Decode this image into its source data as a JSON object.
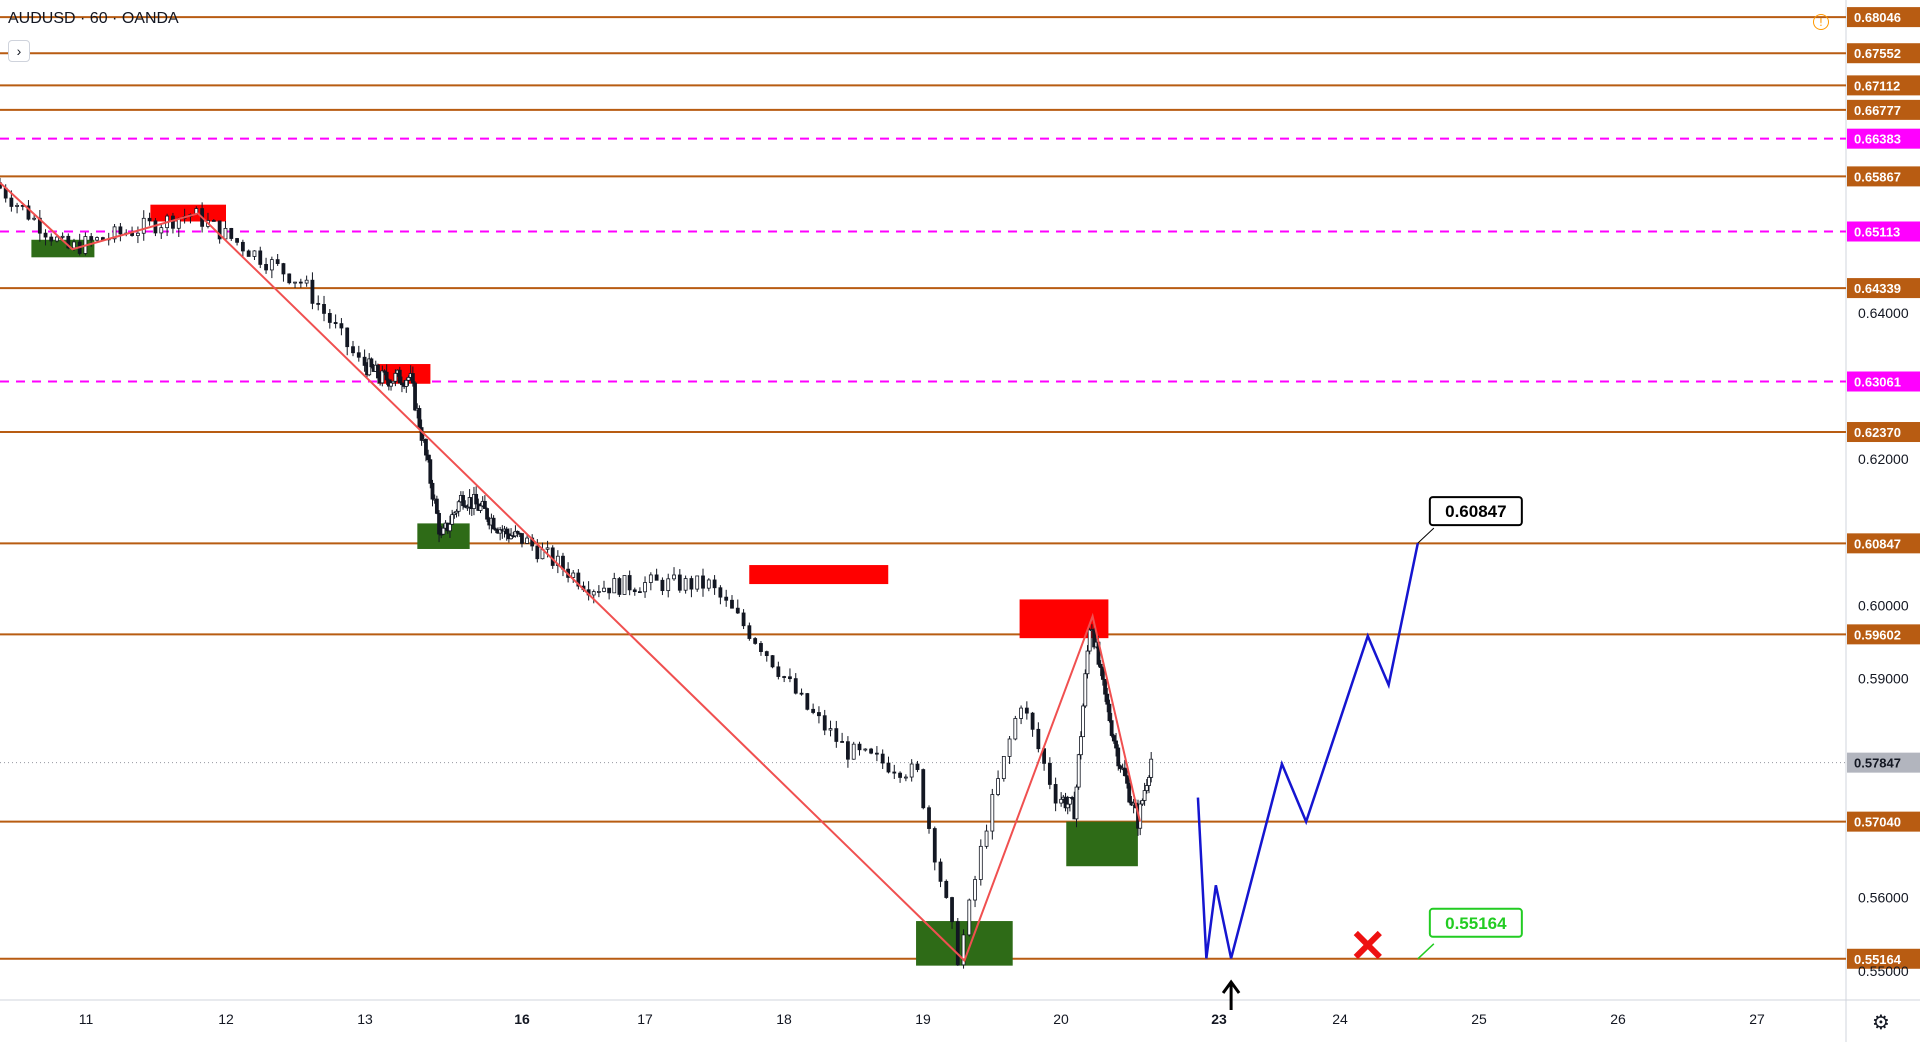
{
  "header": {
    "symbol": "AUDUSD",
    "sep": "·",
    "interval": "60",
    "broker": "OANDA",
    "collapse_glyph": "›"
  },
  "icons": {
    "alert": "alert-clock-icon",
    "settings": "gear-icon"
  },
  "colors": {
    "level_solid": "#b85c12",
    "level_dashed": "#ff00ff",
    "bull_candle": "#ffffff",
    "candle_line": "#131722",
    "supply_zone": "#ff0000",
    "demand_zone": "#2e6b17",
    "zigzag": "#f05050",
    "projection": "#1515d0",
    "target_box": "#000000",
    "stop_box": "#22cc22",
    "cross": "#ee1111"
  },
  "chart_data": {
    "type": "candlestick",
    "symbol": "AUDUSD",
    "timeframe": "60",
    "source": "OANDA",
    "x_ticks": [
      "11",
      "12",
      "13",
      "16",
      "17",
      "18",
      "19",
      "20",
      "23",
      "24",
      "25",
      "26",
      "27"
    ],
    "x_ticks_bold": [
      "16",
      "23"
    ],
    "y_ticks": [
      "0.64000",
      "0.62000",
      "0.60000",
      "0.59000",
      "0.56000",
      "0.55000"
    ],
    "y_range": [
      0.546,
      0.6828
    ],
    "current_price": {
      "label": "0.57847",
      "value": 0.57847
    },
    "levels": [
      {
        "label": "0.68046",
        "value": 0.68046,
        "style": "solid"
      },
      {
        "label": "0.67552",
        "value": 0.67552,
        "style": "solid"
      },
      {
        "label": "0.67112",
        "value": 0.67112,
        "style": "solid"
      },
      {
        "label": "0.66777",
        "value": 0.66777,
        "style": "solid"
      },
      {
        "label": "0.66383",
        "value": 0.66383,
        "style": "dashed"
      },
      {
        "label": "0.65867",
        "value": 0.65867,
        "style": "solid"
      },
      {
        "label": "0.65113",
        "value": 0.65113,
        "style": "dashed"
      },
      {
        "label": "0.64339",
        "value": 0.64339,
        "style": "solid"
      },
      {
        "label": "0.63061",
        "value": 0.63061,
        "style": "dashed"
      },
      {
        "label": "0.62370",
        "value": 0.6237,
        "style": "solid"
      },
      {
        "label": "0.60847",
        "value": 0.60847,
        "style": "solid"
      },
      {
        "label": "0.59602",
        "value": 0.59602,
        "style": "solid"
      },
      {
        "label": "0.57040",
        "value": 0.5704,
        "style": "solid"
      },
      {
        "label": "0.55164",
        "value": 0.55164,
        "style": "solid"
      }
    ],
    "supply_zones": [
      {
        "t0": 11.46,
        "t1": 12.0,
        "p0": 0.6525,
        "p1": 0.6548
      },
      {
        "t0": 13.25,
        "t1": 14.25,
        "p0": 0.6303,
        "p1": 0.633
      },
      {
        "t0": 17.75,
        "t1": 18.75,
        "p0": 0.6029,
        "p1": 0.6055
      },
      {
        "t0": 19.7,
        "t1": 20.9,
        "p0": 0.5955,
        "p1": 0.6008
      }
    ],
    "demand_zones": [
      {
        "t0": 10.6,
        "t1": 11.06,
        "p0": 0.6476,
        "p1": 0.65
      },
      {
        "t0": 14.0,
        "t1": 15.0,
        "p0": 0.6077,
        "p1": 0.6112
      },
      {
        "t0": 18.95,
        "t1": 19.65,
        "p0": 0.5507,
        "p1": 0.5568
      },
      {
        "t0": 20.1,
        "t1": 21.46,
        "p0": 0.5643,
        "p1": 0.5704
      }
    ],
    "zigzag": [
      [
        10.37,
        0.6578
      ],
      [
        10.9,
        0.6487
      ],
      [
        11.8,
        0.6536
      ],
      [
        19.3,
        0.5514
      ],
      [
        20.6,
        0.5985
      ],
      [
        21.5,
        0.5704
      ]
    ],
    "projection": [
      [
        22.6,
        0.5737
      ],
      [
        22.76,
        0.5517
      ],
      [
        22.94,
        0.5617
      ],
      [
        23.1,
        0.5517
      ],
      [
        23.52,
        0.5783
      ],
      [
        23.72,
        0.5704
      ],
      [
        24.2,
        0.5958
      ],
      [
        24.35,
        0.5891
      ],
      [
        24.56,
        0.6085
      ]
    ],
    "annotations": {
      "target_label": "0.60847",
      "stop_label": "0.55164",
      "arrow_t": 23.1,
      "cross_t": 24.2
    }
  }
}
